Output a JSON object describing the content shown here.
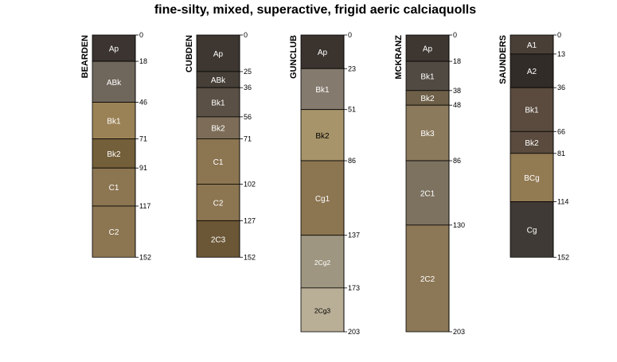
{
  "title": "fine-silty, mixed, superactive, frigid aeric calciaquolls",
  "chart_data": {
    "type": "soil-profile",
    "depth_range": [
      0,
      203
    ],
    "profiles": [
      {
        "name": "BEARDEN",
        "horizons": [
          {
            "label": "Ap",
            "top": 0,
            "bottom": 18,
            "color": "#3b3430",
            "text_color": "#ffffff"
          },
          {
            "label": "ABk",
            "top": 18,
            "bottom": 46,
            "color": "#6f665c",
            "text_color": "#ffffff"
          },
          {
            "label": "Bk1",
            "top": 46,
            "bottom": 71,
            "color": "#9b8256",
            "text_color": "#ffffff"
          },
          {
            "label": "Bk2",
            "top": 71,
            "bottom": 91,
            "color": "#735f3a",
            "text_color": "#ffffff"
          },
          {
            "label": "C1",
            "top": 91,
            "bottom": 117,
            "color": "#8c7551",
            "text_color": "#ffffff"
          },
          {
            "label": "C2",
            "top": 117,
            "bottom": 152,
            "color": "#8c7551",
            "text_color": "#ffffff"
          }
        ],
        "depth_labels": [
          "0",
          "18",
          "46",
          "71",
          "91",
          "117",
          "152"
        ]
      },
      {
        "name": "CUBDEN",
        "horizons": [
          {
            "label": "Ap",
            "top": 0,
            "bottom": 25,
            "color": "#3d3631",
            "text_color": "#ffffff"
          },
          {
            "label": "ABk",
            "top": 25,
            "bottom": 36,
            "color": "#463f38",
            "text_color": "#ffffff"
          },
          {
            "label": "Bk1",
            "top": 36,
            "bottom": 56,
            "color": "#5a5045",
            "text_color": "#ffffff"
          },
          {
            "label": "Bk2",
            "top": 56,
            "bottom": 71,
            "color": "#7d6d58",
            "text_color": "#ffffff"
          },
          {
            "label": "C1",
            "top": 71,
            "bottom": 102,
            "color": "#8c7551",
            "text_color": "#ffffff"
          },
          {
            "label": "C2",
            "top": 102,
            "bottom": 127,
            "color": "#8c7551",
            "text_color": "#ffffff"
          },
          {
            "label": "2C3",
            "top": 127,
            "bottom": 152,
            "color": "#6b5636",
            "text_color": "#ffffff"
          }
        ],
        "depth_labels": [
          "0",
          "25",
          "36",
          "56",
          "71",
          "102",
          "127",
          "152"
        ]
      },
      {
        "name": "GUNCLUB",
        "horizons": [
          {
            "label": "Ap",
            "top": 0,
            "bottom": 23,
            "color": "#3a332e",
            "text_color": "#ffffff"
          },
          {
            "label": "Bk1",
            "top": 23,
            "bottom": 51,
            "color": "#857a6e",
            "text_color": "#ffffff"
          },
          {
            "label": "Bk2",
            "top": 51,
            "bottom": 86,
            "color": "#a8946a",
            "text_color": "#000000"
          },
          {
            "label": "Cg1",
            "top": 86,
            "bottom": 137,
            "color": "#8c7551",
            "text_color": "#ffffff"
          },
          {
            "label": "2Cg2",
            "top": 137,
            "bottom": 173,
            "color": "#9e9680",
            "text_color": "#ffffff"
          },
          {
            "label": "2Cg3",
            "top": 173,
            "bottom": 203,
            "color": "#b9ae96",
            "text_color": "#000000"
          }
        ],
        "depth_labels": [
          "0",
          "23",
          "51",
          "86",
          "137",
          "173",
          "203"
        ]
      },
      {
        "name": "MCKRANZ",
        "horizons": [
          {
            "label": "Ap",
            "top": 0,
            "bottom": 18,
            "color": "#3d3631",
            "text_color": "#ffffff"
          },
          {
            "label": "Bk1",
            "top": 18,
            "bottom": 38,
            "color": "#514a42",
            "text_color": "#ffffff"
          },
          {
            "label": "Bk2",
            "top": 38,
            "bottom": 48,
            "color": "#6e6048",
            "text_color": "#ffffff"
          },
          {
            "label": "Bk3",
            "top": 48,
            "bottom": 86,
            "color": "#8c7a5c",
            "text_color": "#ffffff"
          },
          {
            "label": "2C1",
            "top": 86,
            "bottom": 130,
            "color": "#7d7260",
            "text_color": "#ffffff"
          },
          {
            "label": "2C2",
            "top": 130,
            "bottom": 203,
            "color": "#8c7756",
            "text_color": "#ffffff"
          }
        ],
        "depth_labels": [
          "0",
          "18",
          "38",
          "48",
          "86",
          "130",
          "203"
        ]
      },
      {
        "name": "SAUNDERS",
        "horizons": [
          {
            "label": "A1",
            "top": 0,
            "bottom": 13,
            "color": "#4a3f37",
            "text_color": "#ffffff"
          },
          {
            "label": "A2",
            "top": 13,
            "bottom": 36,
            "color": "#322c28",
            "text_color": "#ffffff"
          },
          {
            "label": "Bk1",
            "top": 36,
            "bottom": 66,
            "color": "#5a4b3e",
            "text_color": "#ffffff"
          },
          {
            "label": "Bk2",
            "top": 66,
            "bottom": 81,
            "color": "#5a4b3e",
            "text_color": "#ffffff"
          },
          {
            "label": "BCg",
            "top": 81,
            "bottom": 114,
            "color": "#927a52",
            "text_color": "#ffffff"
          },
          {
            "label": "Cg",
            "top": 114,
            "bottom": 152,
            "color": "#3f3a35",
            "text_color": "#ffffff"
          }
        ],
        "depth_labels": [
          "0",
          "13",
          "36",
          "66",
          "81",
          "114",
          "152"
        ]
      }
    ]
  }
}
